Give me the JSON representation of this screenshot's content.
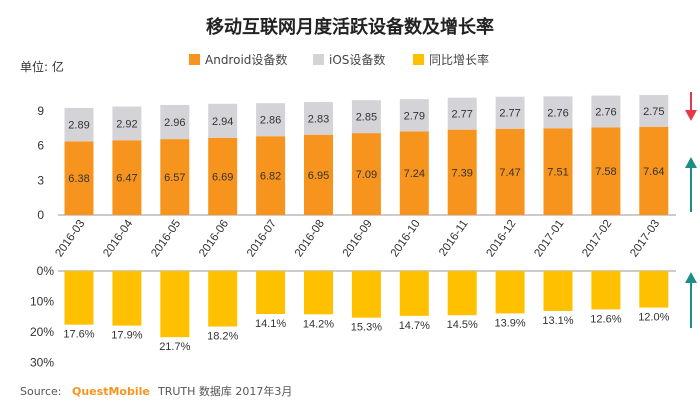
{
  "title": "移动互联网月度活跃设备数及增长率",
  "unit_label": "单位: 亿",
  "legend": [
    {
      "label": "Android设备数",
      "color": "#f7941d"
    },
    {
      "label": "iOS设备数",
      "color": "#d4d4d8"
    },
    {
      "label": "同比增长率",
      "color": "#ffc000"
    }
  ],
  "source": {
    "prefix": "Source:",
    "brand": "QuestMobile",
    "rest": "TRUTH 数据库 2017年3月",
    "brand_color": "#f7941d"
  },
  "colors": {
    "android": "#f7941d",
    "ios": "#d4d4d8",
    "growth": "#ffc000",
    "arrow_down": "#e5394a",
    "arrow_up": "#1b8f86",
    "axis": "#999999"
  },
  "chart_data": [
    {
      "type": "bar",
      "stacked": true,
      "categories": [
        "2016-03",
        "2016-04",
        "2016-05",
        "2016-06",
        "2016-07",
        "2016-08",
        "2016-09",
        "2016-10",
        "2016-11",
        "2016-12",
        "2017-01",
        "2017-02",
        "2017-03"
      ],
      "series": [
        {
          "name": "Android设备数",
          "values": [
            6.38,
            6.47,
            6.57,
            6.69,
            6.82,
            6.95,
            7.09,
            7.24,
            7.39,
            7.47,
            7.51,
            7.58,
            7.64
          ]
        },
        {
          "name": "iOS设备数",
          "values": [
            2.89,
            2.92,
            2.96,
            2.94,
            2.86,
            2.83,
            2.85,
            2.79,
            2.77,
            2.77,
            2.76,
            2.76,
            2.75
          ]
        }
      ],
      "ylabel": "单位: 亿",
      "yticks": [
        "0",
        "3",
        "6",
        "9"
      ],
      "ylim": [
        0,
        10.5
      ],
      "data_labels": true
    },
    {
      "type": "bar",
      "orientation": "down",
      "categories": [
        "2016-03",
        "2016-04",
        "2016-05",
        "2016-06",
        "2016-07",
        "2016-08",
        "2016-09",
        "2016-10",
        "2016-11",
        "2016-12",
        "2017-01",
        "2017-02",
        "2017-03"
      ],
      "series": [
        {
          "name": "同比增长率",
          "values": [
            17.6,
            17.9,
            21.7,
            18.2,
            14.1,
            14.2,
            15.3,
            14.7,
            14.5,
            13.9,
            13.1,
            12.6,
            12.0
          ]
        }
      ],
      "value_labels": [
        "17.6%",
        "17.9%",
        "21.7%",
        "18.2%",
        "14.1%",
        "14.2%",
        "15.3%",
        "14.7%",
        "14.5%",
        "13.9%",
        "13.1%",
        "12.6%",
        "12.0%"
      ],
      "yticks": [
        "0%",
        "10%",
        "20%",
        "30%"
      ],
      "ylim": [
        0,
        30
      ]
    }
  ]
}
